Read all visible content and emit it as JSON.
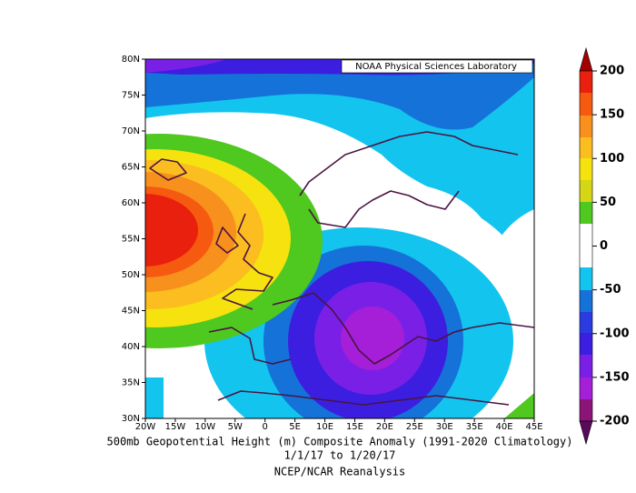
{
  "map": {
    "credit": "NOAA Physical Sciences Laboratory",
    "lat_labels": [
      "30N",
      "35N",
      "40N",
      "45N",
      "50N",
      "55N",
      "60N",
      "65N",
      "70N",
      "75N",
      "80N"
    ],
    "lon_labels": [
      "20W",
      "15W",
      "10W",
      "5W",
      "0",
      "5E",
      "10E",
      "15E",
      "20E",
      "25E",
      "30E",
      "35E",
      "40E",
      "45E"
    ],
    "colorbar": {
      "ticks": [
        200,
        150,
        100,
        50,
        0,
        -50,
        -100,
        -150,
        -200
      ]
    },
    "caption": [
      "500mb Geopotential Height (m) Composite Anomaly (1991-2020 Climatology)",
      "1/1/17   to 1/20/17",
      "NCEP/NCAR Reanalysis"
    ]
  }
}
